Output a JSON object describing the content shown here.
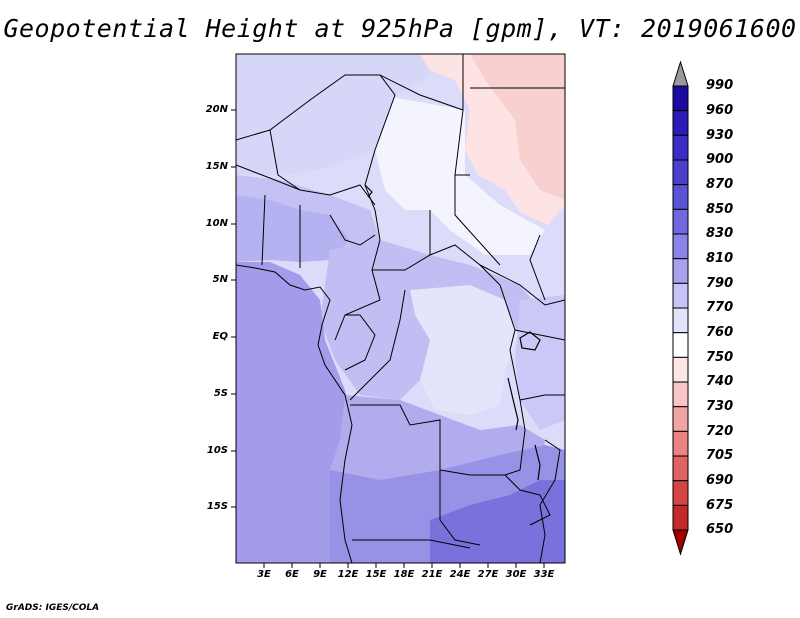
{
  "title": "Geopotential Height at 925hPa [gpm], VT: 2019061600",
  "credit": "GrADS: IGES/COLA",
  "map": {
    "lat_labels": [
      "20N",
      "15N",
      "10N",
      "5N",
      "EQ",
      "5S",
      "10S",
      "15S"
    ],
    "lon_labels": [
      "3E",
      "6E",
      "9E",
      "12E",
      "15E",
      "18E",
      "21E",
      "24E",
      "27E",
      "30E",
      "33E"
    ]
  },
  "colorbar": {
    "levels": [
      "990",
      "960",
      "930",
      "900",
      "870",
      "850",
      "830",
      "810",
      "790",
      "770",
      "760",
      "750",
      "740",
      "730",
      "720",
      "705",
      "690",
      "675",
      "650"
    ],
    "colors": [
      "#1a0aa0",
      "#2a1cb4",
      "#3a2ec4",
      "#4a40cc",
      "#5c54d6",
      "#7068dc",
      "#8a84e6",
      "#a6a2ee",
      "#c6c4f6",
      "#e2e2fa",
      "#ffffff",
      "#fde6e6",
      "#f8c6c6",
      "#f2a4a4",
      "#ea8484",
      "#e06262",
      "#d44444",
      "#c42828",
      "#ae1010"
    ],
    "top_arrow_color": "#9a9a9a",
    "bottom_arrow_color": "#a00000"
  }
}
